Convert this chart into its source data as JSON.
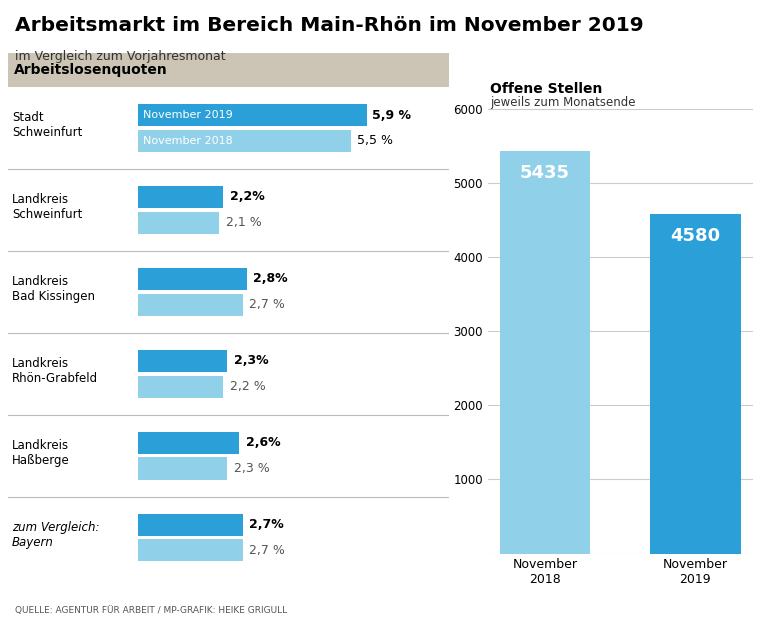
{
  "title": "Arbeitsmarkt im Bereich Main-Rhön im November 2019",
  "subtitle": "im Vergleich zum Vorjahresmonat",
  "source": "QUELLE: AGENTUR FÜR ARBEIT / MP-GRAFIK: HEIKE GRIGULL",
  "left_section_title": "Arbeitslosenquoten",
  "right_section_title": "Offene Stellen",
  "right_section_subtitle": "jeweils zum Monatsende",
  "bar_color_2019": "#2a9fd8",
  "bar_color_2018": "#90d0e8",
  "groups": [
    {
      "label": "Stadt\nSchweinfurt",
      "val_2019": 5.9,
      "val_2018": 5.5,
      "show_label_inside": true,
      "label_2019": "November 2019",
      "label_2018": "November 2018"
    },
    {
      "label": "Landkreis\nSchweinfurt",
      "val_2019": 2.2,
      "val_2018": 2.1,
      "show_label_inside": false
    },
    {
      "label": "Landkreis\nBad Kissingen",
      "val_2019": 2.8,
      "val_2018": 2.7,
      "show_label_inside": false
    },
    {
      "label": "Landkreis\nRhön-Grabfeld",
      "val_2019": 2.3,
      "val_2018": 2.2,
      "show_label_inside": false
    },
    {
      "label": "Landkreis\nHaßberge",
      "val_2019": 2.6,
      "val_2018": 2.3,
      "show_label_inside": false
    },
    {
      "label": "zum Vergleich:\nBayern",
      "val_2019": 2.7,
      "val_2018": 2.7,
      "show_label_inside": false,
      "italic": true
    }
  ],
  "bar_chart": {
    "labels": [
      "November\n2018",
      "November\n2019"
    ],
    "values": [
      5435,
      4580
    ],
    "colors": [
      "#90d0e8",
      "#2a9fd8"
    ],
    "ylim": [
      0,
      6000
    ],
    "yticks": [
      0,
      1000,
      2000,
      3000,
      4000,
      5000,
      6000
    ]
  }
}
